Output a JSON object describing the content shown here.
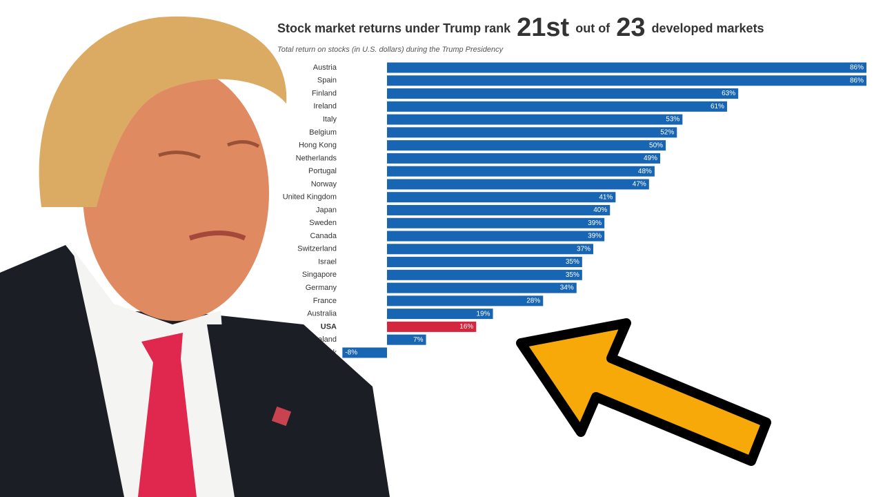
{
  "chart_data": {
    "type": "bar",
    "title_parts": [
      "Stock market returns under Trump rank",
      "21st",
      "out of",
      "23",
      "developed markets"
    ],
    "subtitle": "Total return on stocks (in U.S. dollars) during the Trump Presidency",
    "categories": [
      "Austria",
      "Spain",
      "Finland",
      "Ireland",
      "Italy",
      "Belgium",
      "Hong Kong",
      "Netherlands",
      "Portugal",
      "Norway",
      "United Kingdom",
      "Japan",
      "Sweden",
      "Canada",
      "Switzerland",
      "Israel",
      "Singapore",
      "Germany",
      "France",
      "Australia",
      "USA",
      "New Zealand",
      "Denmark"
    ],
    "values": [
      86,
      86,
      63,
      61,
      53,
      52,
      50,
      49,
      48,
      47,
      41,
      40,
      39,
      39,
      37,
      35,
      35,
      34,
      28,
      19,
      16,
      7,
      -8
    ],
    "value_labels": [
      "86%",
      "86%",
      "63%",
      "61%",
      "53%",
      "52%",
      "50%",
      "49%",
      "48%",
      "47%",
      "41%",
      "40%",
      "39%",
      "39%",
      "37%",
      "35%",
      "35%",
      "34%",
      "28%",
      "19%",
      "16%",
      "7%",
      "-8%"
    ],
    "colors": [
      "#1865b3",
      "#1865b3",
      "#1865b3",
      "#1865b3",
      "#1865b3",
      "#1865b3",
      "#1865b3",
      "#1865b3",
      "#1865b3",
      "#1865b3",
      "#1865b3",
      "#1865b3",
      "#1865b3",
      "#1865b3",
      "#1865b3",
      "#1865b3",
      "#1865b3",
      "#1865b3",
      "#1865b3",
      "#1865b3",
      "#d3263f",
      "#1865b3",
      "#1865b3"
    ]
  }
}
